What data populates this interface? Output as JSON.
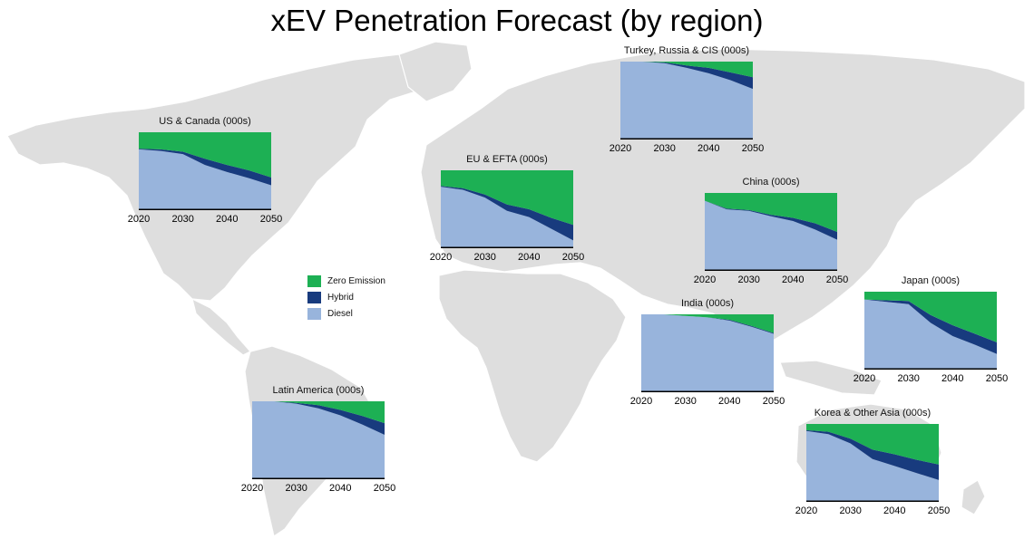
{
  "title": "xEV Penetration Forecast (by region)",
  "colors": {
    "zero": "#1db054",
    "hybrid": "#183b7e",
    "diesel": "#98b4dc",
    "map": "#dedede"
  },
  "legend": [
    {
      "key": "zero",
      "label": "Zero Emission"
    },
    {
      "key": "hybrid",
      "label": "Hybrid"
    },
    {
      "key": "diesel",
      "label": "Diesel"
    }
  ],
  "chart_data": [
    {
      "type": "area",
      "title": "US & Canada (000s)",
      "x": [
        2020,
        2025,
        2030,
        2035,
        2040,
        2045,
        2050
      ],
      "xticks": [
        "2020",
        "2030",
        "2040",
        "2050"
      ],
      "ylim": [
        0,
        100
      ],
      "stacked": true,
      "series": [
        {
          "name": "Diesel",
          "values": [
            78,
            76,
            72,
            58,
            49,
            41,
            32
          ]
        },
        {
          "name": "Hybrid",
          "values": [
            1,
            2,
            3,
            8,
            9,
            10,
            10
          ]
        },
        {
          "name": "Zero Emission",
          "values": [
            21,
            22,
            25,
            34,
            42,
            49,
            58
          ]
        }
      ]
    },
    {
      "type": "area",
      "title": "EU & EFTA (000s)",
      "x": [
        2020,
        2025,
        2030,
        2035,
        2040,
        2045,
        2050
      ],
      "xticks": [
        "2020",
        "2030",
        "2040",
        "2050"
      ],
      "ylim": [
        0,
        100
      ],
      "stacked": true,
      "series": [
        {
          "name": "Diesel",
          "values": [
            79,
            75,
            65,
            48,
            40,
            25,
            10
          ]
        },
        {
          "name": "Hybrid",
          "values": [
            1,
            2,
            4,
            8,
            10,
            14,
            20
          ]
        },
        {
          "name": "Zero Emission",
          "values": [
            20,
            23,
            31,
            44,
            50,
            61,
            70
          ]
        }
      ]
    },
    {
      "type": "area",
      "title": "Turkey, Russia & CIS (000s)",
      "x": [
        2020,
        2025,
        2030,
        2035,
        2040,
        2045,
        2050
      ],
      "xticks": [
        "2020",
        "2030",
        "2040",
        "2050"
      ],
      "ylim": [
        0,
        100
      ],
      "stacked": true,
      "series": [
        {
          "name": "Diesel",
          "values": [
            100,
            100,
            98,
            92,
            85,
            76,
            65
          ]
        },
        {
          "name": "Hybrid",
          "values": [
            0,
            0,
            1,
            3,
            7,
            10,
            15
          ]
        },
        {
          "name": "Zero Emission",
          "values": [
            0,
            0,
            1,
            5,
            8,
            14,
            20
          ]
        }
      ]
    },
    {
      "type": "area",
      "title": "China (000s)",
      "x": [
        2020,
        2025,
        2030,
        2035,
        2040,
        2045,
        2050
      ],
      "xticks": [
        "2020",
        "2030",
        "2040",
        "2050"
      ],
      "ylim": [
        0,
        100
      ],
      "stacked": true,
      "series": [
        {
          "name": "Diesel",
          "values": [
            90,
            79,
            77,
            70,
            64,
            53,
            40
          ]
        },
        {
          "name": "Hybrid",
          "values": [
            0,
            1,
            1,
            2,
            4,
            8,
            10
          ]
        },
        {
          "name": "Zero Emission",
          "values": [
            10,
            20,
            22,
            28,
            32,
            39,
            50
          ]
        }
      ]
    },
    {
      "type": "area",
      "title": "India (000s)",
      "x": [
        2020,
        2025,
        2030,
        2035,
        2040,
        2045,
        2050
      ],
      "xticks": [
        "2020",
        "2030",
        "2040",
        "2050"
      ],
      "ylim": [
        0,
        100
      ],
      "stacked": true,
      "series": [
        {
          "name": "Diesel",
          "values": [
            100,
            100,
            98,
            96,
            92,
            84,
            75
          ]
        },
        {
          "name": "Hybrid",
          "values": [
            0,
            0,
            0,
            0,
            1,
            1,
            1
          ]
        },
        {
          "name": "Zero Emission",
          "values": [
            0,
            0,
            2,
            4,
            7,
            15,
            24
          ]
        }
      ]
    },
    {
      "type": "area",
      "title": "Japan (000s)",
      "x": [
        2020,
        2025,
        2030,
        2035,
        2040,
        2045,
        2050
      ],
      "xticks": [
        "2020",
        "2030",
        "2040",
        "2050"
      ],
      "ylim": [
        0,
        100
      ],
      "stacked": true,
      "series": [
        {
          "name": "Diesel",
          "values": [
            90,
            87,
            84,
            60,
            43,
            32,
            20
          ]
        },
        {
          "name": "Hybrid",
          "values": [
            0,
            2,
            4,
            10,
            14,
            14,
            15
          ]
        },
        {
          "name": "Zero Emission",
          "values": [
            10,
            11,
            12,
            30,
            43,
            54,
            65
          ]
        }
      ]
    },
    {
      "type": "area",
      "title": "Latin America (000s)",
      "x": [
        2020,
        2025,
        2030,
        2035,
        2040,
        2045,
        2050
      ],
      "xticks": [
        "2020",
        "2030",
        "2040",
        "2050"
      ],
      "ylim": [
        0,
        100
      ],
      "stacked": true,
      "series": [
        {
          "name": "Diesel",
          "values": [
            100,
            100,
            97,
            91,
            82,
            70,
            57
          ]
        },
        {
          "name": "Hybrid",
          "values": [
            0,
            0,
            1,
            4,
            7,
            11,
            15
          ]
        },
        {
          "name": "Zero Emission",
          "values": [
            0,
            0,
            2,
            5,
            11,
            19,
            28
          ]
        }
      ]
    },
    {
      "type": "area",
      "title": "Korea & Other Asia (000s)",
      "x": [
        2020,
        2025,
        2030,
        2035,
        2040,
        2045,
        2050
      ],
      "xticks": [
        "2020",
        "2030",
        "2040",
        "2050"
      ],
      "ylim": [
        0,
        100
      ],
      "stacked": true,
      "series": [
        {
          "name": "Diesel",
          "values": [
            91,
            87,
            75,
            55,
            46,
            37,
            28
          ]
        },
        {
          "name": "Hybrid",
          "values": [
            1,
            3,
            6,
            12,
            15,
            17,
            20
          ]
        },
        {
          "name": "Zero Emission",
          "values": [
            8,
            10,
            19,
            33,
            39,
            46,
            52
          ]
        }
      ]
    }
  ]
}
